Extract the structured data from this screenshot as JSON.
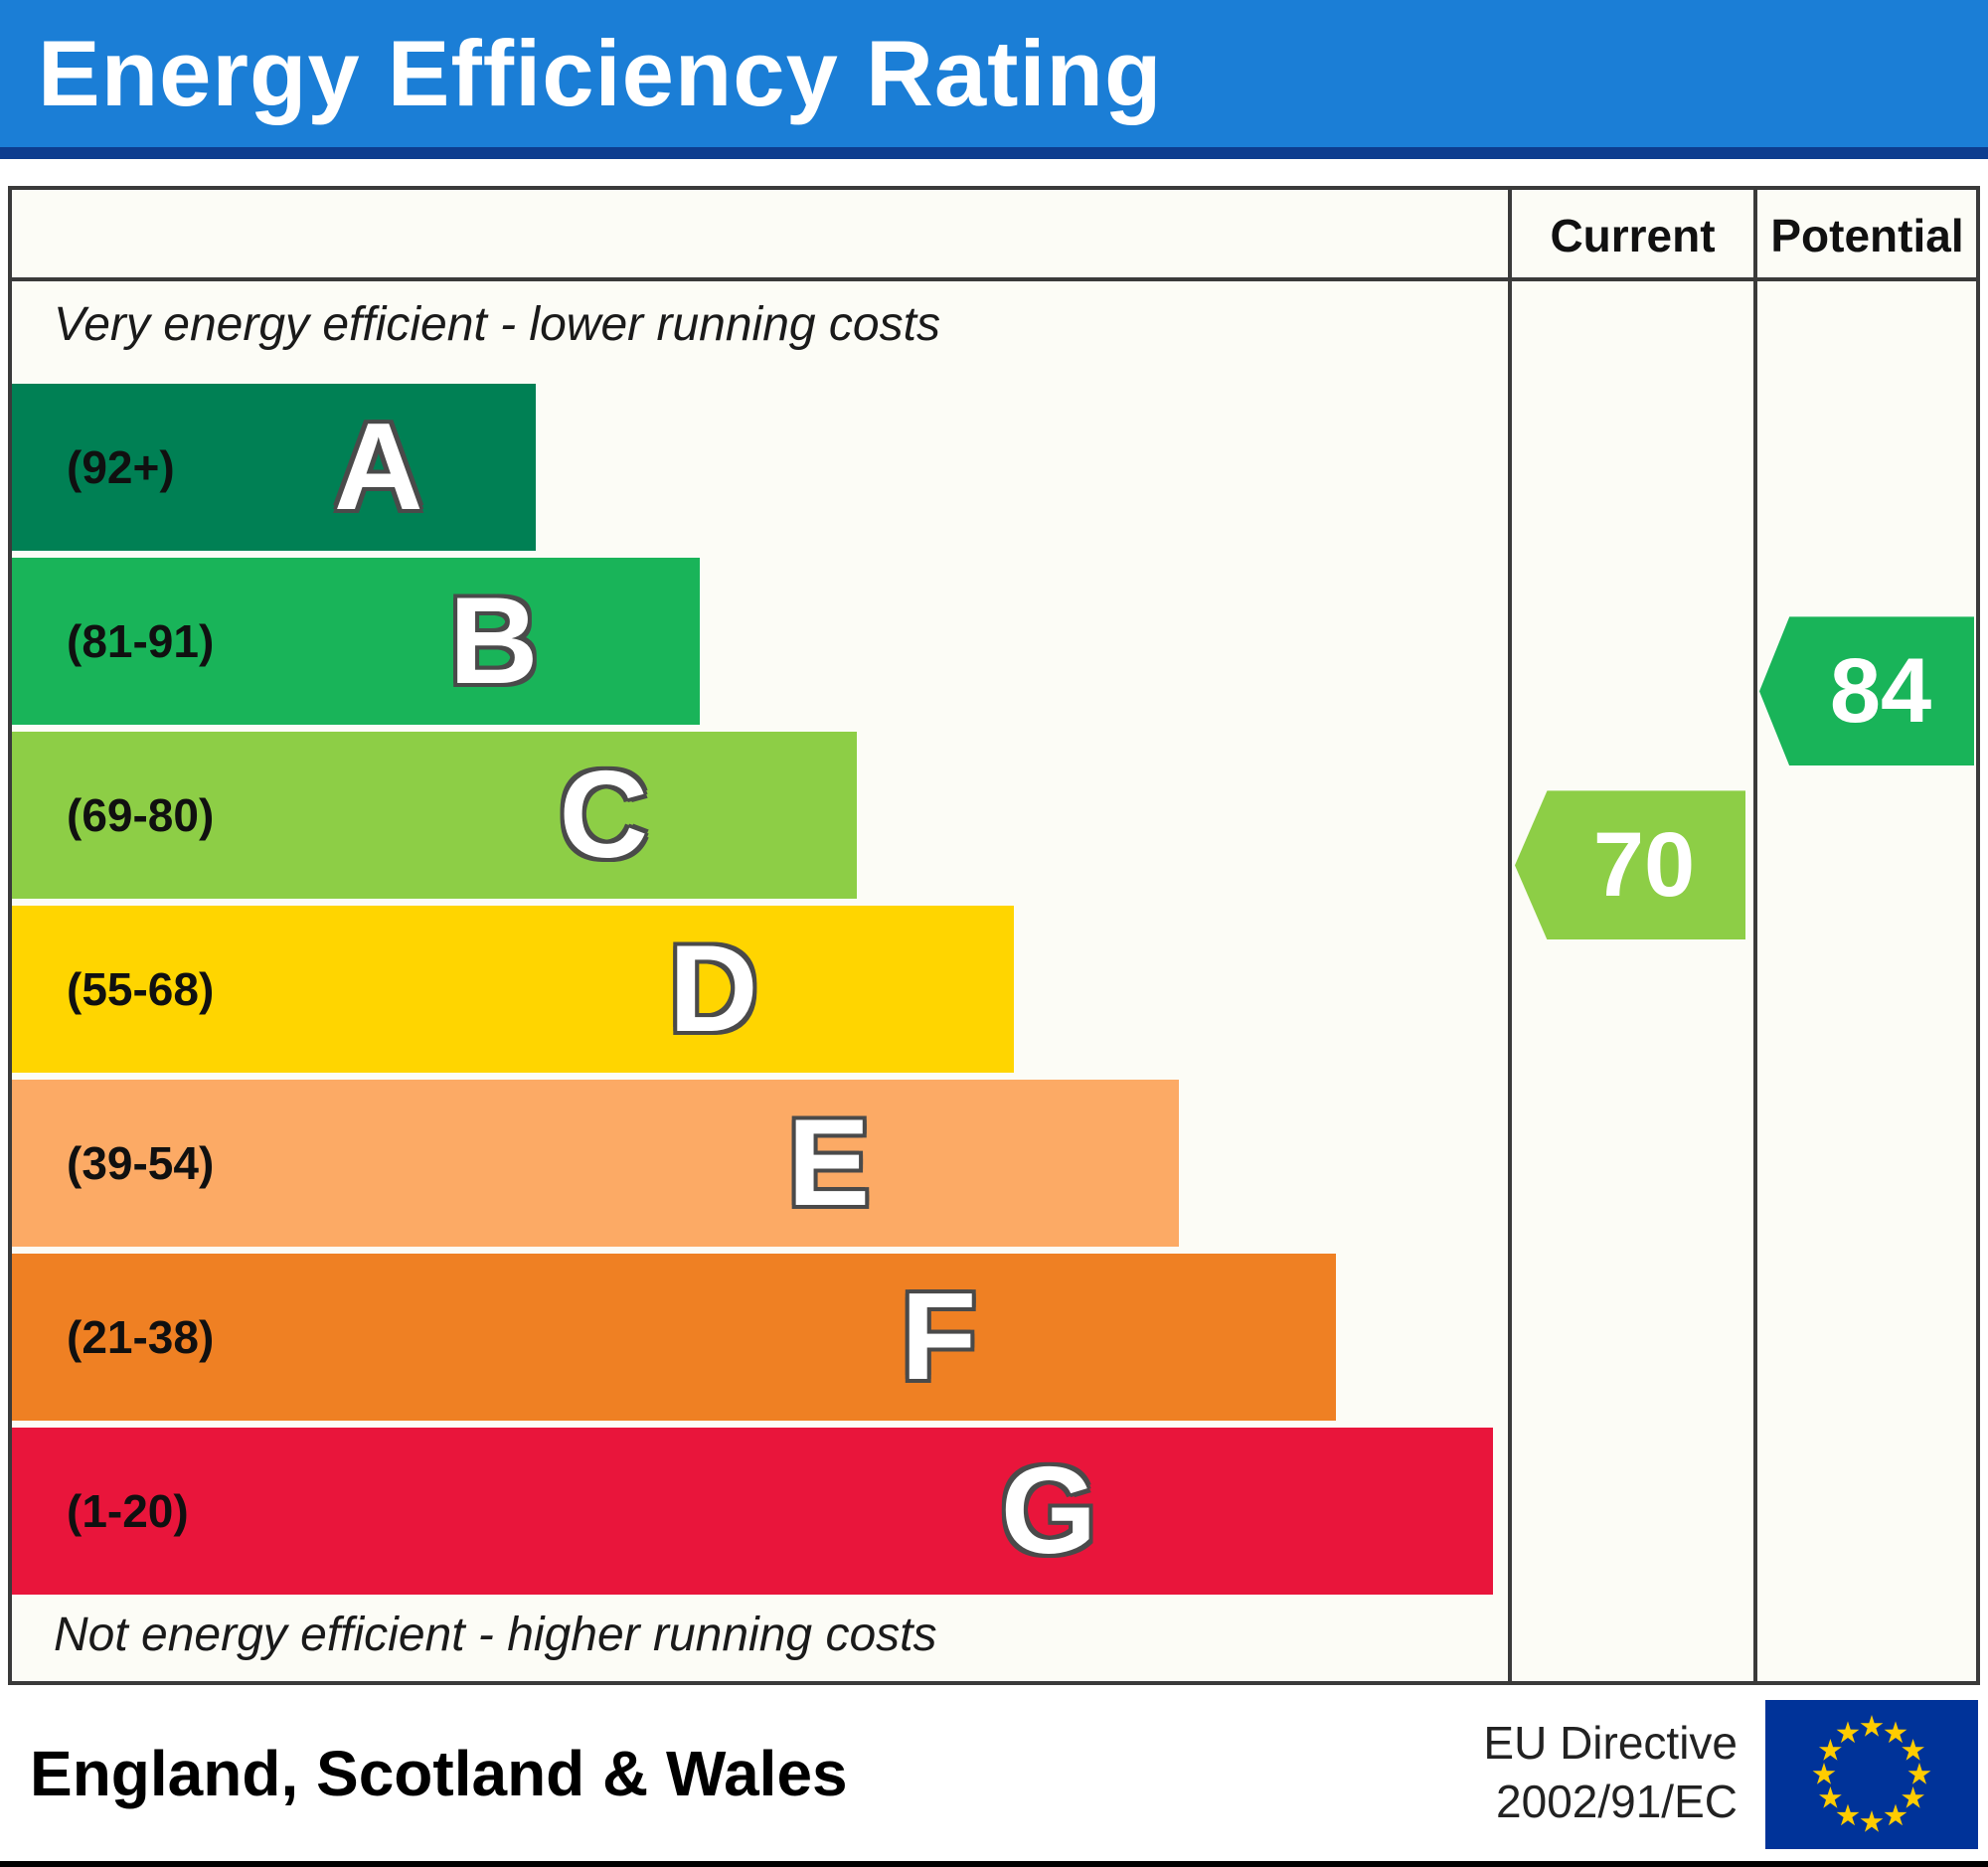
{
  "header": {
    "title": "Energy Efficiency Rating",
    "bg": "#1b7ed6",
    "underline": "#0d3d8f"
  },
  "columns": {
    "current_label": "Current",
    "potential_label": "Potential"
  },
  "scale": {
    "top_note": "Very energy efficient - lower running costs",
    "bottom_note": "Not energy efficient - higher running costs",
    "bands": [
      {
        "letter": "A",
        "range_label": "(92+)",
        "color": "#008054",
        "width_pct": 35
      },
      {
        "letter": "B",
        "range_label": "(81-91)",
        "color": "#19b459",
        "width_pct": 46
      },
      {
        "letter": "C",
        "range_label": "(69-80)",
        "color": "#8dce46",
        "width_pct": 56.5
      },
      {
        "letter": "D",
        "range_label": "(55-68)",
        "color": "#ffd500",
        "width_pct": 67
      },
      {
        "letter": "E",
        "range_label": "(39-54)",
        "color": "#fcaa65",
        "width_pct": 78
      },
      {
        "letter": "F",
        "range_label": "(21-38)",
        "color": "#ef8023",
        "width_pct": 88.5
      },
      {
        "letter": "G",
        "range_label": "(1-20)",
        "color": "#e9153b",
        "width_pct": 99
      }
    ]
  },
  "ratings": {
    "current": {
      "value": "70",
      "color": "#8dce46",
      "band_index": 2
    },
    "potential": {
      "value": "84",
      "color": "#19b459",
      "band_index": 1
    }
  },
  "footer": {
    "region": "England, Scotland & Wales",
    "directive_line1": "EU Directive",
    "directive_line2": "2002/91/EC",
    "flag_name": "eu-flag",
    "flag_bg": "#003399",
    "flag_star_color": "#ffcc00"
  },
  "chart_data": {
    "type": "bar",
    "title": "Energy Efficiency Rating",
    "categories": [
      "A (92+)",
      "B (81-91)",
      "C (69-80)",
      "D (55-68)",
      "E (39-54)",
      "F (21-38)",
      "G (1-20)"
    ],
    "band_colors": [
      "#008054",
      "#19b459",
      "#8dce46",
      "#ffd500",
      "#fcaa65",
      "#ef8023",
      "#e9153b"
    ],
    "series": [
      {
        "name": "Current",
        "values": [
          70
        ],
        "band": "C",
        "color": "#8dce46"
      },
      {
        "name": "Potential",
        "values": [
          84
        ],
        "band": "B",
        "color": "#19b459"
      }
    ],
    "annotations": [
      "Very energy efficient - lower running costs",
      "Not energy efficient - higher running costs"
    ],
    "footer_text": "England, Scotland & Wales",
    "directive": "EU Directive 2002/91/EC",
    "legend_position": "none",
    "grid": false
  }
}
